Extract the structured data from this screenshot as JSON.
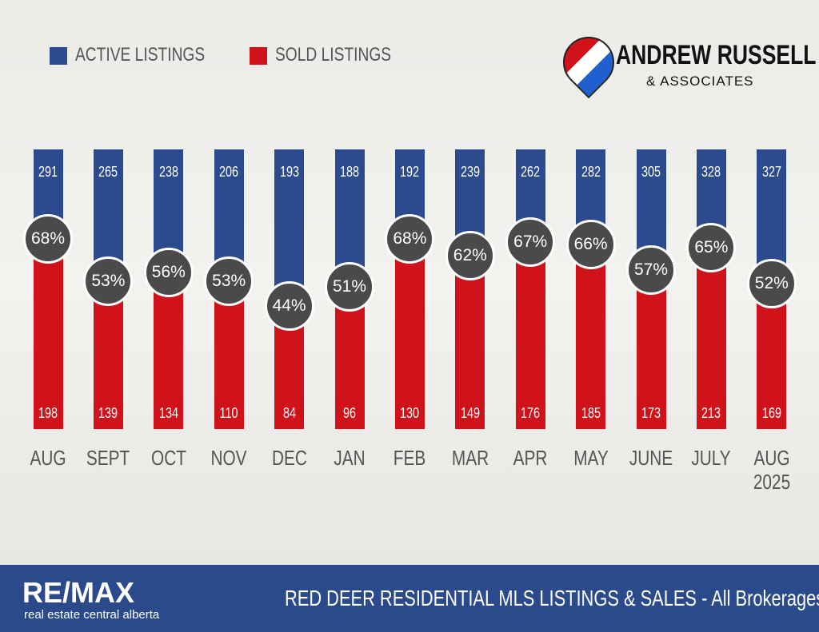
{
  "chart_data": {
    "type": "ratio_bar",
    "title": "RED DEER RESIDENTIAL MLS LISTINGS & SALES - All Brokerages",
    "brand": {
      "name": "RE/MAX",
      "tagline": "real estate central alberta"
    },
    "logo": {
      "name": "ANDREW RUSSELL",
      "sub": "& ASSOCIATES"
    },
    "categories": [
      "AUG",
      "SEPT",
      "OCT",
      "NOV",
      "DEC",
      "JAN",
      "FEB",
      "MAR",
      "APR",
      "MAY",
      "JUNE",
      "JULY",
      "AUG\n2025"
    ],
    "series": [
      {
        "name": "ACTIVE LISTINGS",
        "color": "#2c4b8e",
        "values": [
          291,
          265,
          238,
          206,
          193,
          188,
          192,
          239,
          262,
          282,
          305,
          328,
          327
        ]
      },
      {
        "name": "SOLD LISTINGS",
        "color": "#d0121b",
        "values": [
          198,
          139,
          134,
          110,
          84,
          96,
          130,
          149,
          176,
          185,
          173,
          213,
          169
        ]
      }
    ],
    "percent_values": [
      68,
      53,
      56,
      53,
      44,
      51,
      68,
      62,
      67,
      66,
      57,
      65,
      52
    ],
    "percent_labels": [
      "68%",
      "53%",
      "56%",
      "53%",
      "44%",
      "51%",
      "68%",
      "62%",
      "67%",
      "66%",
      "57%",
      "65%",
      "52%"
    ],
    "percent_scale": 100,
    "circle_color": "#4a4a4a"
  }
}
